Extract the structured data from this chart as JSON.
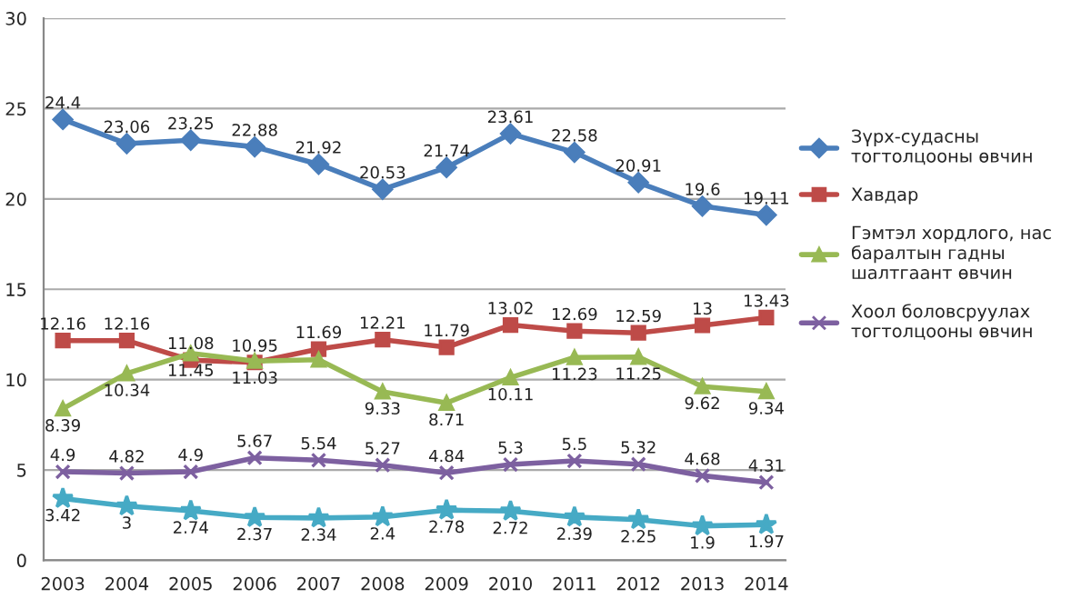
{
  "chart_data": {
    "type": "line",
    "categories": [
      "2003",
      "2004",
      "2005",
      "2006",
      "2007",
      "2008",
      "2009",
      "2010",
      "2011",
      "2012",
      "2013",
      "2014"
    ],
    "ylim": [
      0,
      30
    ],
    "yticks": [
      0,
      5,
      10,
      15,
      20,
      25,
      30
    ],
    "grid": "y",
    "legend": "right",
    "data_labels": true,
    "series": [
      {
        "name": "Зүрх-судасны тогтолцооны өвчин",
        "color": "#4a7ebb",
        "marker": "diamond",
        "values": [
          24.4,
          23.06,
          23.25,
          22.88,
          21.92,
          20.53,
          21.74,
          23.61,
          22.58,
          20.91,
          19.6,
          19.11
        ]
      },
      {
        "name": "Хавдар",
        "color": "#be4b48",
        "marker": "square",
        "values": [
          12.16,
          12.16,
          11.08,
          10.95,
          11.69,
          12.21,
          11.79,
          13.02,
          12.69,
          12.59,
          13,
          13.43
        ]
      },
      {
        "name": "Гэмтэл хордлого, нас баралтын гадны шалтгаант өвчин",
        "color": "#98b954",
        "marker": "triangle",
        "values": [
          8.39,
          10.34,
          11.45,
          11.03,
          11.1,
          9.33,
          8.71,
          10.11,
          11.23,
          11.25,
          9.62,
          9.34
        ],
        "value_labels": [
          "8.39",
          "10.34",
          "11.45",
          "11.03",
          null,
          "9.33",
          "8.71",
          "10.11",
          "11.23",
          "11.25",
          "9.62",
          "9.34"
        ]
      },
      {
        "name": "Хоол боловсруулах тогтолцооны өвчин",
        "color": "#7d60a0",
        "marker": "cross",
        "values": [
          4.9,
          4.82,
          4.9,
          5.67,
          5.54,
          5.27,
          4.84,
          5.3,
          5.5,
          5.32,
          4.68,
          4.31
        ]
      },
      {
        "name": null,
        "color": "#46aac5",
        "marker": "star",
        "values": [
          3.42,
          3,
          2.74,
          2.37,
          2.34,
          2.4,
          2.78,
          2.72,
          2.39,
          2.25,
          1.9,
          1.97
        ]
      }
    ]
  }
}
